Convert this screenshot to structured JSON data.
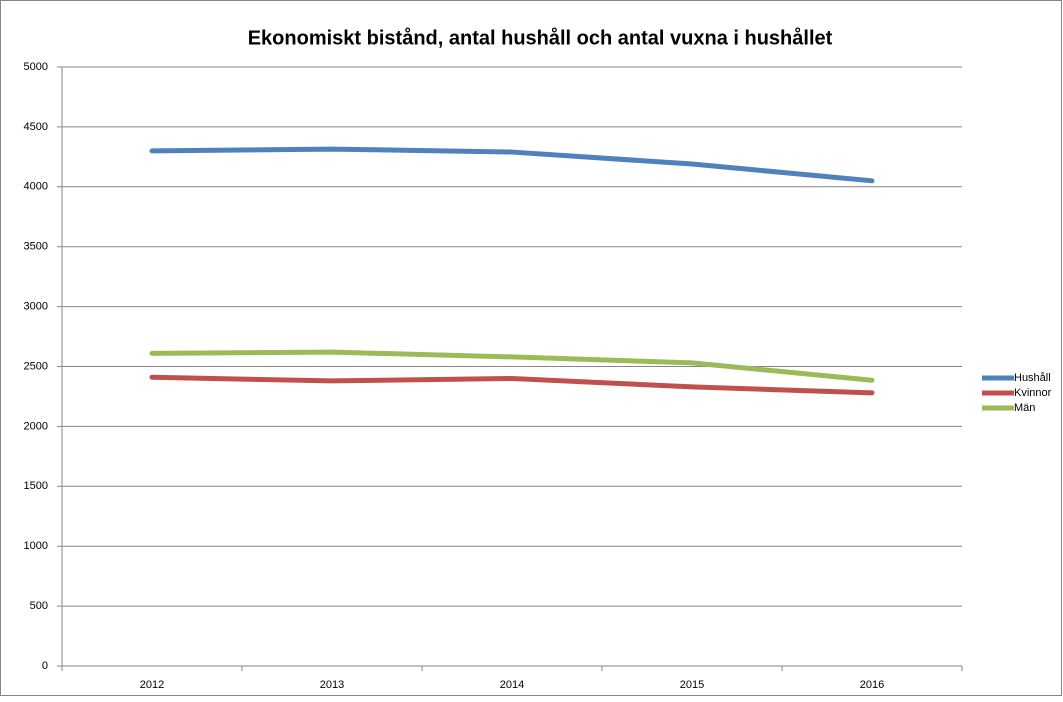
{
  "chart_data": {
    "type": "line",
    "title": "Ekonomiskt bistånd, antal hushåll och antal vuxna i hushållet",
    "categories": [
      "2012",
      "2013",
      "2014",
      "2015",
      "2016"
    ],
    "series": [
      {
        "name": "Hushåll",
        "color": "#4f81bd",
        "values": [
          4300,
          4315,
          4290,
          4190,
          4050
        ]
      },
      {
        "name": "Kvinnor",
        "color": "#c0504d",
        "values": [
          2410,
          2380,
          2400,
          2330,
          2280
        ]
      },
      {
        "name": "Män",
        "color": "#9bbb59",
        "values": [
          2610,
          2620,
          2580,
          2530,
          2385
        ]
      }
    ],
    "ylim": [
      0,
      5000
    ],
    "yticks": [
      0,
      500,
      1000,
      1500,
      2000,
      2500,
      3000,
      3500,
      4000,
      4500,
      5000
    ],
    "grid": true,
    "legend": "right"
  }
}
